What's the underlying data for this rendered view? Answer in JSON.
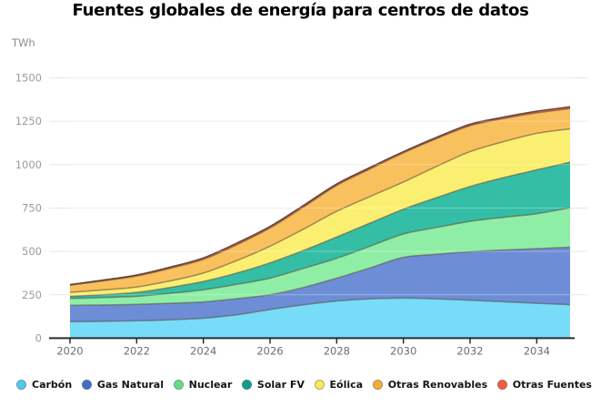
{
  "header": {
    "title": "Fuentes globales de energía para centros de datos"
  },
  "axes": {
    "y_unit_label": "TWh",
    "y_tick_labels": [
      "0",
      "250",
      "500",
      "750",
      "1000",
      "1250",
      "1500"
    ],
    "x_tick_labels": [
      "2020",
      "2022",
      "2024",
      "2026",
      "2028",
      "2030",
      "2032",
      "2034"
    ]
  },
  "chart_data": {
    "type": "area",
    "stacked": true,
    "title": "Fuentes globales de energía para centros de datos",
    "xlabel": "",
    "ylabel": "TWh",
    "x": [
      2020,
      2021,
      2022,
      2023,
      2024,
      2025,
      2026,
      2027,
      2028,
      2029,
      2030,
      2031,
      2032,
      2033,
      2034,
      2035
    ],
    "xticks": [
      2020,
      2022,
      2024,
      2026,
      2028,
      2030,
      2032,
      2034
    ],
    "yticks": [
      0,
      250,
      500,
      750,
      1000,
      1250,
      1500
    ],
    "ylim": [
      0,
      1500
    ],
    "xlim": [
      2020,
      2035
    ],
    "grid": "horizontal",
    "legend_position": "bottom",
    "series": [
      {
        "name": "Carbón",
        "fill": "#76DCF8",
        "legend_color": "#4FC9F0",
        "values": [
          95,
          97,
          100,
          106,
          115,
          135,
          165,
          192,
          214,
          226,
          231,
          226,
          219,
          210,
          201,
          193
        ]
      },
      {
        "name": "Gas Natural",
        "fill": "#6D8ED7",
        "legend_color": "#3F6ECB",
        "values": [
          94,
          94,
          95,
          95,
          94,
          92,
          85,
          100,
          132,
          179,
          235,
          257,
          279,
          298,
          315,
          331
        ]
      },
      {
        "name": "Nuclear",
        "fill": "#8FEEA6",
        "legend_color": "#62DD84",
        "values": [
          40,
          43,
          46,
          57,
          70,
          83,
          96,
          110,
          114,
          125,
          134,
          155,
          175,
          188,
          201,
          228
        ]
      },
      {
        "name": "Solar FV",
        "fill": "#34BEA6",
        "legend_color": "#0F9C8C",
        "values": [
          12,
          17,
          23,
          34,
          48,
          65,
          88,
          103,
          123,
          133,
          143,
          172,
          201,
          229,
          253,
          262
        ]
      },
      {
        "name": "Eólica",
        "fill": "#FBEF72",
        "legend_color": "#F6EA5A",
        "values": [
          23,
          27,
          31,
          38,
          48,
          72,
          96,
          123,
          148,
          153,
          157,
          180,
          201,
          207,
          210,
          192
        ]
      },
      {
        "name": "Otras Renovables",
        "fill": "#F9C05E",
        "legend_color": "#F3AC3C",
        "values": [
          41,
          52,
          63,
          72,
          79,
          91,
          105,
          127,
          149,
          159,
          167,
          160,
          149,
          133,
          118,
          117
        ]
      },
      {
        "name": "Otras Fuentes",
        "fill": "#EF6A52",
        "legend_color": "#F25C41",
        "values": [
          4,
          5,
          6,
          7,
          9,
          10,
          9,
          10,
          9,
          9,
          8,
          8,
          9,
          9,
          10,
          10
        ]
      }
    ]
  }
}
